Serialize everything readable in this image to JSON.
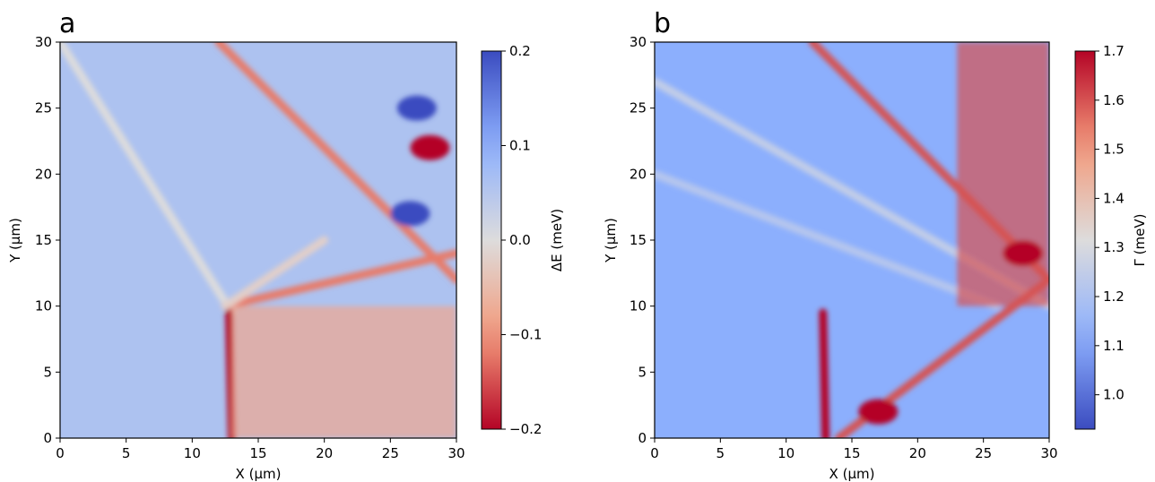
{
  "chart_data": [
    {
      "type": "heatmap",
      "panel_label": "a",
      "xlabel": "X (µm)",
      "ylabel": "Y (µm)",
      "xlim": [
        0,
        30
      ],
      "ylim": [
        0,
        30
      ],
      "xticks": [
        0,
        5,
        10,
        15,
        20,
        25,
        30
      ],
      "yticks": [
        0,
        5,
        10,
        15,
        20,
        25,
        30
      ],
      "colormap": "coolwarm_reversed",
      "colorbar": {
        "label": "ΔE (meV)",
        "range": [
          -0.2,
          0.2
        ],
        "ticks": [
          0.2,
          0.1,
          0.0,
          -0.1,
          -0.2
        ],
        "tick_labels": [
          "0.2",
          "0.1",
          "0.0",
          "−0.1",
          "−0.2"
        ],
        "top_color": "#3b4cc0",
        "bottom_color": "#b40426"
      },
      "background_level": 0.06,
      "features": [
        {
          "kind": "line",
          "from": [
            0,
            30
          ],
          "to": [
            13,
            9.5
          ],
          "level": 0.0
        },
        {
          "kind": "line",
          "from": [
            12.8,
            9.5
          ],
          "to": [
            13,
            0
          ],
          "level": -0.2
        },
        {
          "kind": "line",
          "from": [
            12.5,
            10
          ],
          "to": [
            30,
            14
          ],
          "level": -0.12
        },
        {
          "kind": "line",
          "from": [
            12.5,
            10
          ],
          "to": [
            20,
            15
          ],
          "level": -0.02
        },
        {
          "kind": "line",
          "from": [
            12,
            30
          ],
          "to": [
            30,
            12
          ],
          "level": -0.12
        },
        {
          "kind": "region",
          "from": [
            13,
            0
          ],
          "to": [
            30,
            10
          ],
          "level": -0.08
        },
        {
          "kind": "spot",
          "at": [
            28,
            22
          ],
          "level": -0.2
        },
        {
          "kind": "spot",
          "at": [
            26.5,
            17
          ],
          "level": 0.2
        },
        {
          "kind": "spot",
          "at": [
            27,
            25
          ],
          "level": 0.2
        }
      ]
    },
    {
      "type": "heatmap",
      "panel_label": "b",
      "xlabel": "X (µm)",
      "ylabel": "Y (µm)",
      "xlim": [
        0,
        30
      ],
      "ylim": [
        0,
        30
      ],
      "xticks": [
        0,
        5,
        10,
        15,
        20,
        25,
        30
      ],
      "yticks": [
        0,
        5,
        10,
        15,
        20,
        25,
        30
      ],
      "colormap": "coolwarm",
      "colorbar": {
        "label": "Γ (meV)",
        "range": [
          0.93,
          1.7
        ],
        "ticks": [
          1.7,
          1.6,
          1.5,
          1.4,
          1.3,
          1.2,
          1.1,
          1.0
        ],
        "tick_labels": [
          "1.7",
          "1.6",
          "1.5",
          "1.4",
          "1.3",
          "1.2",
          "1.1",
          "1.0"
        ],
        "top_color": "#b40426",
        "bottom_color": "#3b4cc0"
      },
      "background_level": 1.12,
      "features": [
        {
          "kind": "line",
          "from": [
            0,
            27
          ],
          "to": [
            30,
            10
          ],
          "level": 1.25
        },
        {
          "kind": "line",
          "from": [
            0,
            20
          ],
          "to": [
            26,
            10
          ],
          "level": 1.22
        },
        {
          "kind": "line",
          "from": [
            12,
            30
          ],
          "to": [
            30,
            12
          ],
          "level": 1.6
        },
        {
          "kind": "line",
          "from": [
            12.8,
            9.5
          ],
          "to": [
            13,
            0
          ],
          "level": 1.7
        },
        {
          "kind": "line",
          "from": [
            14,
            0
          ],
          "to": [
            30,
            12
          ],
          "level": 1.6
        },
        {
          "kind": "region",
          "from": [
            23,
            10
          ],
          "to": [
            30,
            30
          ],
          "level": 1.6
        },
        {
          "kind": "spot",
          "at": [
            28,
            14
          ],
          "level": 1.7
        },
        {
          "kind": "spot",
          "at": [
            17,
            2
          ],
          "level": 1.7
        }
      ]
    }
  ]
}
